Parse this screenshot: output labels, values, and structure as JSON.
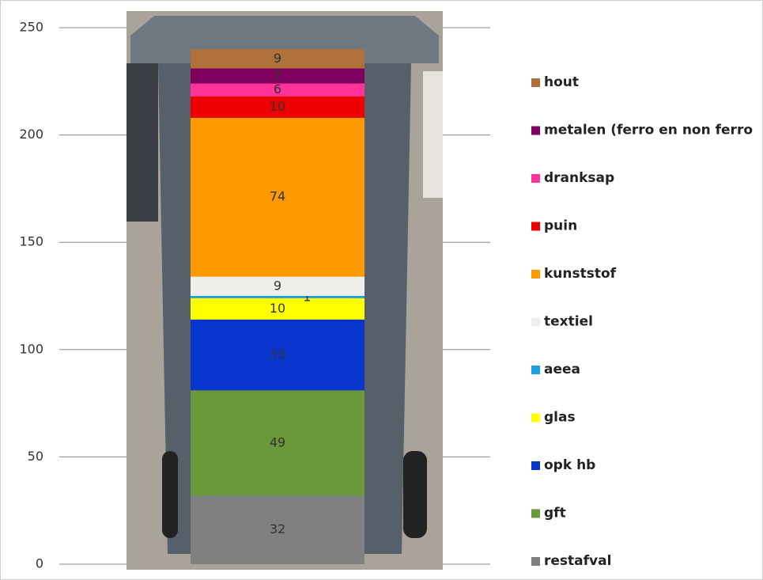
{
  "chart_data": {
    "type": "bar",
    "stacked": true,
    "categories": [
      null
    ],
    "series": [
      {
        "name": "restafval",
        "color": "#808080",
        "values": [
          32
        ]
      },
      {
        "name": "gft",
        "color": "#6b993a",
        "values": [
          49
        ]
      },
      {
        "name": "opk hb",
        "color": "#0836cc",
        "values": [
          33
        ]
      },
      {
        "name": "glas",
        "color": "#ffff00",
        "values": [
          10
        ]
      },
      {
        "name": "aeea",
        "color": "#1ea0e6",
        "values": [
          1
        ]
      },
      {
        "name": "textiel",
        "color": "#eeeeea",
        "values": [
          9
        ]
      },
      {
        "name": "kunststof",
        "color": "#ff9900",
        "values": [
          74
        ]
      },
      {
        "name": "puin",
        "color": "#ee0000",
        "values": [
          10
        ]
      },
      {
        "name": "dranksap",
        "color": "#ff3399",
        "values": [
          6
        ]
      },
      {
        "name": "metalen (ferro en non ferro",
        "color": "#800060",
        "values": [
          7
        ]
      },
      {
        "name": "hout",
        "color": "#b0703a",
        "values": [
          9
        ]
      }
    ],
    "ylim": [
      0,
      250
    ],
    "yticks": [
      0,
      50,
      100,
      150,
      200,
      250
    ],
    "grid": true,
    "legend": "right"
  }
}
